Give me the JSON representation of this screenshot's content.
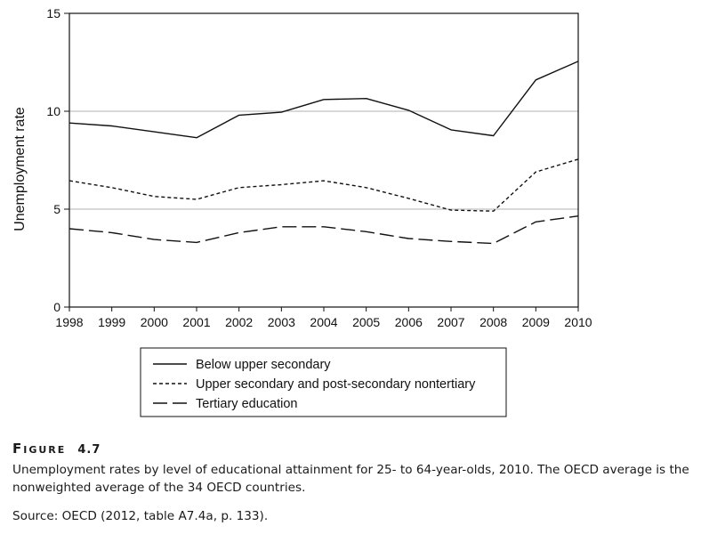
{
  "chart_data": {
    "type": "line",
    "title": "",
    "xlabel": "",
    "ylabel": "Unemployment rate",
    "x": [
      1998,
      1999,
      2000,
      2001,
      2002,
      2003,
      2004,
      2005,
      2006,
      2007,
      2008,
      2009,
      2010
    ],
    "x_tick_labels": [
      "1998",
      "1999",
      "2000",
      "2001",
      "2002",
      "2003",
      "2004",
      "2005",
      "2006",
      "2007",
      "2008",
      "2009",
      "2010"
    ],
    "ylim": [
      0,
      15
    ],
    "y_ticks": [
      0,
      5,
      10,
      15
    ],
    "y_tick_labels": [
      "0",
      "5",
      "10",
      "15"
    ],
    "grid": "horizontal at 5 and 10",
    "legend_position": "below plot",
    "series": [
      {
        "name": "Below upper secondary",
        "line_style": "solid",
        "values": [
          9.4,
          9.25,
          8.95,
          8.65,
          9.8,
          9.95,
          10.6,
          10.65,
          10.05,
          9.05,
          8.75,
          11.6,
          12.55
        ]
      },
      {
        "name": "Upper secondary and post-secondary nontertiary",
        "line_style": "dotted",
        "values": [
          6.45,
          6.1,
          5.65,
          5.5,
          6.1,
          6.25,
          6.45,
          6.1,
          5.55,
          4.95,
          4.9,
          6.9,
          7.55
        ]
      },
      {
        "name": "Tertiary education",
        "line_style": "dashed",
        "values": [
          4.0,
          3.8,
          3.45,
          3.3,
          3.8,
          4.1,
          4.1,
          3.85,
          3.5,
          3.35,
          3.25,
          4.35,
          4.65
        ]
      }
    ],
    "colors": {
      "line": "#111111",
      "grid": "#b0b0b0",
      "frame": "#111111"
    }
  },
  "caption": {
    "figure_word": "Figure",
    "figure_number": "4.7",
    "text": "Unemployment rates by level of educational attainment for 25- to 64-year-olds, 2010. The OECD average is the nonweighted average of the 34 OECD countries.",
    "source": "Source: OECD (2012, table A7.4a, p. 133)."
  }
}
